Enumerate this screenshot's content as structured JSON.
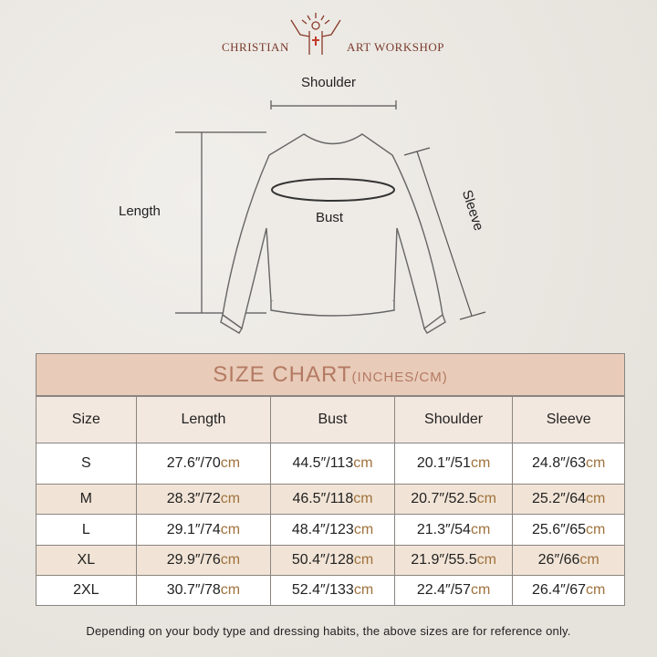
{
  "brand": {
    "left": "CHRISTIAN",
    "right": "ART WORKSHOP"
  },
  "diagram": {
    "shoulder": "Shoulder",
    "length": "Length",
    "bust": "Bust",
    "sleeve": "Sleeve"
  },
  "chart": {
    "title": "SIZE CHART",
    "title_units": "(INCHES/CM)",
    "unit_cm": "cm",
    "separator": "/",
    "headers": [
      "Size",
      "Length",
      "Bust",
      "Shoulder",
      "Sleeve"
    ],
    "rows": [
      {
        "size": "S",
        "cells": [
          {
            "in": "27.6″",
            "cm": "70"
          },
          {
            "in": "44.5″",
            "cm": "113"
          },
          {
            "in": "20.1″",
            "cm": "51"
          },
          {
            "in": "24.8″",
            "cm": "63"
          }
        ]
      },
      {
        "size": "M",
        "cells": [
          {
            "in": "28.3″",
            "cm": "72"
          },
          {
            "in": "46.5″",
            "cm": "118"
          },
          {
            "in": "20.7″",
            "cm": "52.5"
          },
          {
            "in": "25.2″",
            "cm": "64"
          }
        ]
      },
      {
        "size": "L",
        "cells": [
          {
            "in": "29.1″",
            "cm": "74"
          },
          {
            "in": "48.4″",
            "cm": "123"
          },
          {
            "in": "21.3″",
            "cm": "54"
          },
          {
            "in": "25.6″",
            "cm": "65"
          }
        ]
      },
      {
        "size": "XL",
        "cells": [
          {
            "in": "29.9″",
            "cm": "76"
          },
          {
            "in": "50.4″",
            "cm": "128"
          },
          {
            "in": "21.9″",
            "cm": "55.5"
          },
          {
            "in": "26″",
            "cm": "66"
          }
        ]
      },
      {
        "size": "2XL",
        "cells": [
          {
            "in": "30.7″",
            "cm": "78"
          },
          {
            "in": "52.4″",
            "cm": "133"
          },
          {
            "in": "22.4″",
            "cm": "57"
          },
          {
            "in": "26.4″",
            "cm": "67"
          }
        ]
      }
    ],
    "row_colors": [
      "#ffffff",
      "#f1e4d6"
    ]
  },
  "note": "Depending on your body type and dressing habits, the above sizes are for reference only."
}
